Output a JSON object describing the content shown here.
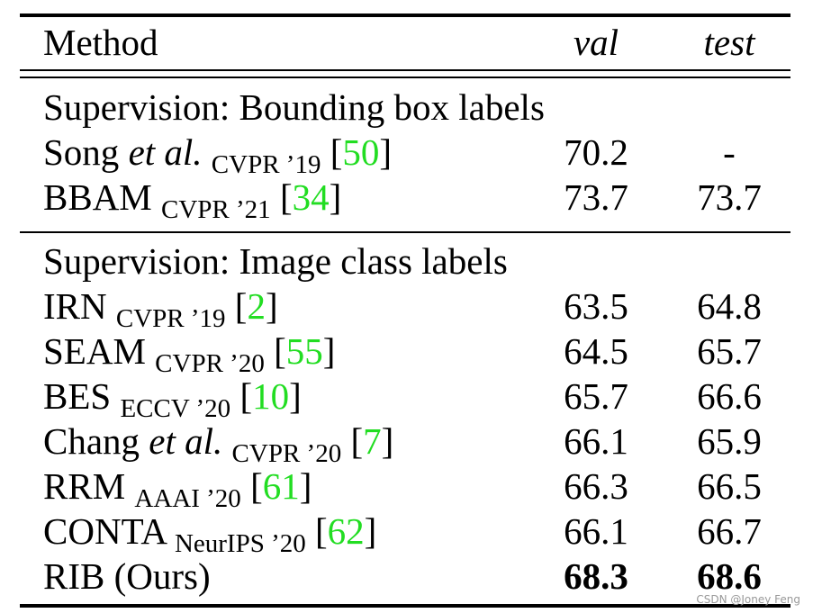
{
  "table": {
    "header": {
      "method": "Method",
      "val": "val",
      "test": "test"
    },
    "sections": [
      {
        "title": "Supervision: Bounding box labels",
        "rows": [
          {
            "name": "Song",
            "name_italic": "et al.",
            "venue": "CVPR ’19",
            "cite": "50",
            "val": "70.2",
            "test": "-"
          },
          {
            "name": "BBAM",
            "venue": "CVPR ’21",
            "cite": "34",
            "val": "73.7",
            "test": "73.7"
          }
        ]
      },
      {
        "title": "Supervision: Image class labels",
        "rows": [
          {
            "name": "IRN",
            "venue": "CVPR ’19",
            "cite": "2",
            "val": "63.5",
            "test": "64.8"
          },
          {
            "name": "SEAM",
            "venue": "CVPR ’20",
            "cite": "55",
            "val": "64.5",
            "test": "65.7"
          },
          {
            "name": "BES",
            "venue": "ECCV ’20",
            "cite": "10",
            "val": "65.7",
            "test": "66.6"
          },
          {
            "name": "Chang",
            "name_italic": "et al.",
            "venue": "CVPR ’20",
            "cite": "7",
            "val": "66.1",
            "test": "65.9"
          },
          {
            "name": "RRM",
            "venue": "AAAI ’20",
            "cite": "61",
            "val": "66.3",
            "test": "66.5"
          },
          {
            "name": "CONTA",
            "venue": "NeurIPS ’20",
            "cite": "62",
            "val": "66.1",
            "test": "66.7"
          },
          {
            "name": "RIB (Ours)",
            "val": "68.3",
            "test": "68.6",
            "bold": true
          }
        ]
      }
    ]
  },
  "watermark": "CSDN @Joney Feng",
  "colors": {
    "citation": "#22dd22",
    "rule": "#000000"
  }
}
